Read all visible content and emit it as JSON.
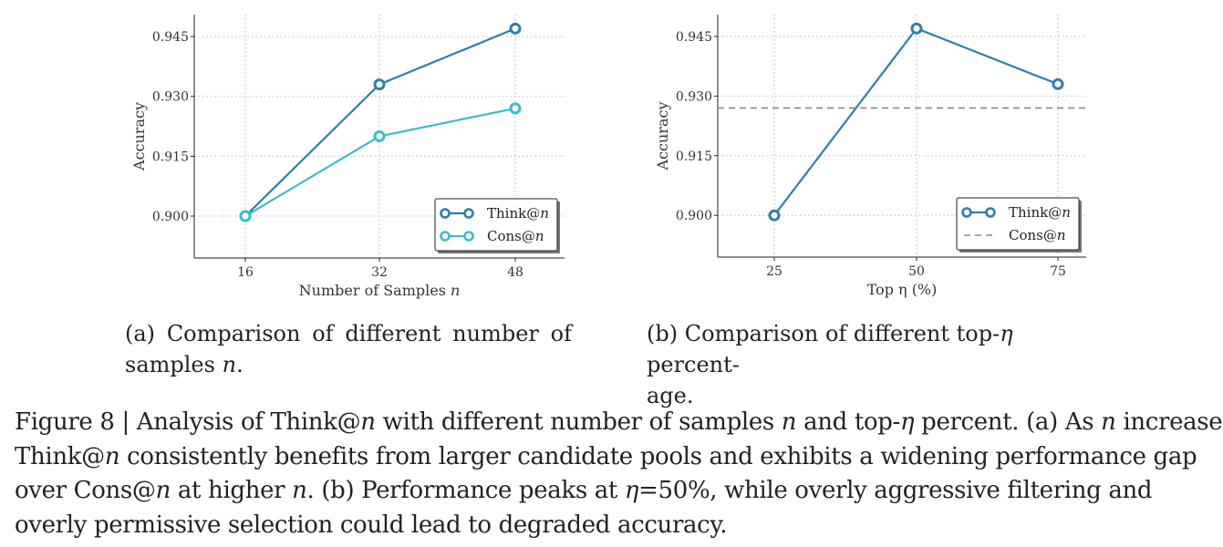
{
  "chart_data": [
    {
      "type": "line",
      "id": "a",
      "x": [
        16,
        32,
        48
      ],
      "categories": [
        "16",
        "32",
        "48"
      ],
      "series": [
        {
          "name": "Think@n",
          "label_prefix": "Think@",
          "label_var": "n",
          "values": [
            0.9,
            0.933,
            0.947
          ],
          "color": "#2f7fa8"
        },
        {
          "name": "Cons@n",
          "label_prefix": "Cons@",
          "label_var": "n",
          "values": [
            0.9,
            0.92,
            0.927
          ],
          "color": "#3bbccb"
        }
      ],
      "xlabel": "Number of Samples",
      "xlabel_var": "n",
      "ylabel": "Accuracy",
      "yticks": [
        "0.900",
        "0.915",
        "0.930",
        "0.945"
      ],
      "ylim": [
        0.8895,
        0.9505
      ],
      "grid": true,
      "legend": "bottom-right"
    },
    {
      "type": "line",
      "id": "b",
      "x": [
        25,
        50,
        75
      ],
      "categories": [
        "25",
        "50",
        "75"
      ],
      "series": [
        {
          "name": "Think@n",
          "label_prefix": "Think@",
          "label_var": "n",
          "values": [
            0.9,
            0.947,
            0.933
          ],
          "color": "#2f7fa8"
        },
        {
          "name": "Cons@n",
          "label_prefix": "Cons@",
          "label_var": "n",
          "baseline": 0.927,
          "color": "#888888",
          "style": "dashed"
        }
      ],
      "xlabel": "Top η (%)",
      "ylabel": "Accuracy",
      "yticks": [
        "0.900",
        "0.915",
        "0.930",
        "0.945"
      ],
      "ylim": [
        0.8895,
        0.9505
      ],
      "grid": true,
      "legend": "bottom-right"
    }
  ],
  "captions": {
    "a": {
      "text": "(a) Comparison of different number of samples",
      "var": "n",
      "end": "."
    },
    "b": {
      "line1": "(b) Comparison of different top-",
      "var": "η",
      "line1_end": " percent-",
      "line2": "age."
    }
  },
  "figure_caption": {
    "l1_a": "Figure 8 | Analysis of Think@",
    "l1_v1": "n",
    "l1_b": " with different number of samples ",
    "l1_v2": "n",
    "l1_c": " and top-",
    "l1_v3": "η",
    "l1_d": " percent. (a) As ",
    "l1_v4": "n",
    "l1_e": " increases,",
    "l2_a": "Think@",
    "l2_v1": "n",
    "l2_b": " consistently benefits from larger candidate pools and exhibits a widening performance gap",
    "l3_a": "over Cons@",
    "l3_v1": "n",
    "l3_b": " at higher ",
    "l3_v2": "n",
    "l3_c": ". (b) Performance peaks at ",
    "l3_v3": "η",
    "l3_d": "=50%, while overly aggressive filtering and",
    "l4_a": "overly permissive selection could lead to degraded accuracy."
  }
}
